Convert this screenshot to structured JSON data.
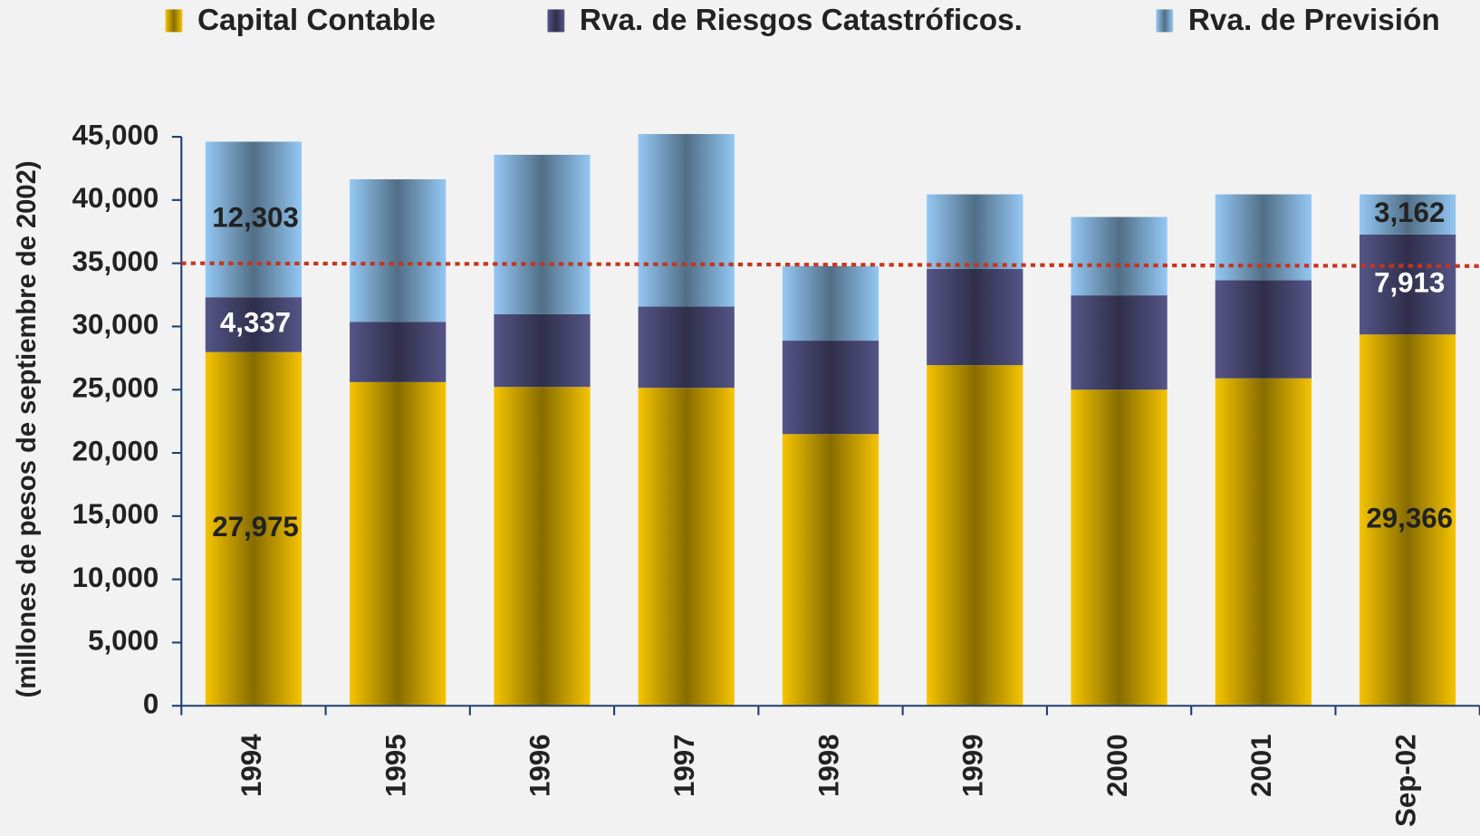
{
  "chart_data": {
    "type": "stacked_bar",
    "y_axis_label": "(millones de pesos de septiembre de 2002)",
    "categories": [
      "1994",
      "1995",
      "1996",
      "1997",
      "1998",
      "1999",
      "2000",
      "2001",
      "Sep-02"
    ],
    "series": [
      {
        "name": "Capital Contable",
        "color": "#f5c400",
        "values": [
          27975,
          25600,
          25220,
          25150,
          21490,
          26940,
          25000,
          25900,
          29366
        ],
        "value_labels": [
          "27,975",
          null,
          null,
          null,
          null,
          null,
          null,
          null,
          "29,366"
        ]
      },
      {
        "name": "Rva. de Riesgos Catastróficos.",
        "color": "#555588",
        "values": [
          4337,
          4770,
          5750,
          6420,
          7390,
          7610,
          7460,
          7760,
          7913
        ],
        "value_labels": [
          "4,337",
          null,
          null,
          null,
          null,
          null,
          null,
          null,
          "7,913"
        ]
      },
      {
        "name": "Rva. de Previsión",
        "color": "#94c8f4",
        "values": [
          12303,
          11270,
          12610,
          13650,
          5900,
          5900,
          6200,
          6790,
          3162
        ],
        "value_labels": [
          "12,303",
          null,
          null,
          null,
          null,
          null,
          null,
          null,
          "3,162"
        ]
      }
    ],
    "ylim": [
      0,
      45000
    ],
    "yticks": [
      0,
      {
        "value": 5000,
        "label": "5,000"
      },
      {
        "value": 10000,
        "label": "10,000"
      },
      {
        "value": 15000,
        "label": "15,000"
      },
      {
        "value": 20000,
        "label": "20,000"
      },
      {
        "value": 25000,
        "label": "25,000"
      },
      {
        "value": 30000,
        "label": "30,000"
      },
      {
        "value": 35000,
        "label": "35,000"
      },
      {
        "value": 40000,
        "label": "40,000"
      },
      {
        "value": 45000,
        "label": "45,000"
      }
    ],
    "reference_line": {
      "value": 35000,
      "color": "#c8341c"
    }
  }
}
